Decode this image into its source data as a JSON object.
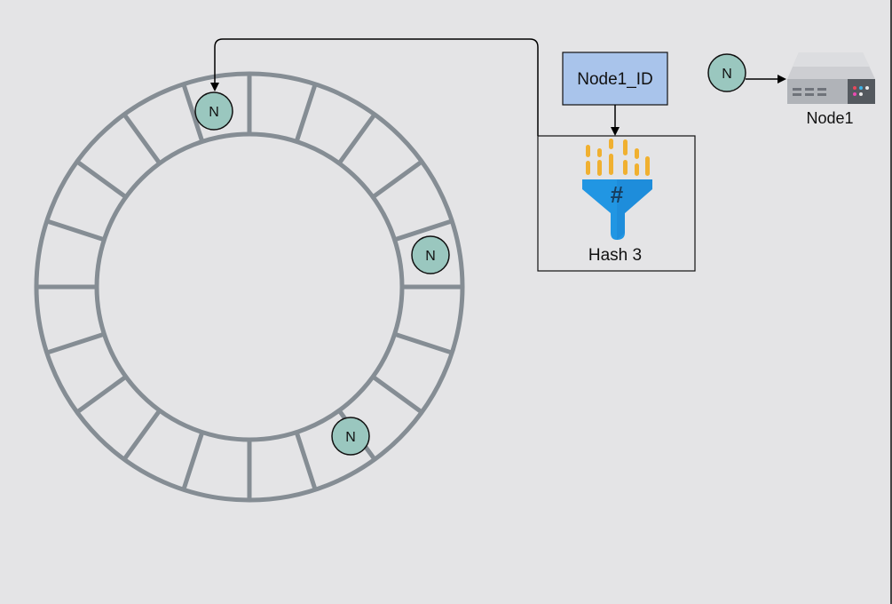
{
  "diagram": {
    "ring": {
      "segments": 20
    },
    "ring_nodes": [
      {
        "label": "N"
      },
      {
        "label": "N"
      },
      {
        "label": "N"
      }
    ],
    "input_box": {
      "label": "Node1_ID",
      "fill": "#a9c4eb"
    },
    "hash_box": {
      "label": "Hash 3",
      "icon": "hash-funnel-icon"
    },
    "server": {
      "node_label": "N",
      "name": "Node1",
      "icon": "server-icon"
    },
    "colors": {
      "background": "#e4e4e6",
      "ring": "#858d94",
      "node_fill": "#9ac7bf",
      "funnel_blue": "#2196e3",
      "funnel_orange": "#f0b030"
    }
  }
}
